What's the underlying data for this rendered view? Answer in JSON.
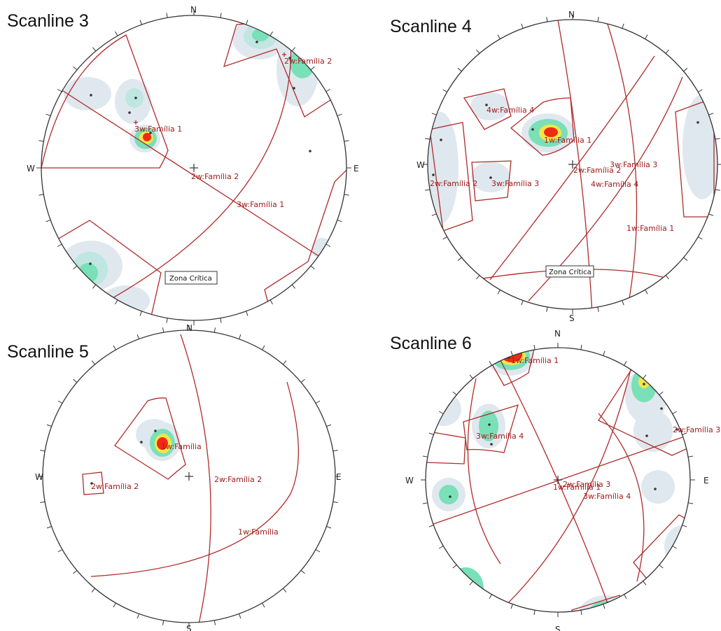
{
  "colors": {
    "feature": "#b02a2a",
    "outline": "#333333",
    "contour_low": "#dfe8ee",
    "contour_mid": "#79e0b8",
    "contour_high": "#f4e64a",
    "contour_peak": "#ee2b14"
  },
  "directions": {
    "n": "N",
    "s": "S",
    "e": "E",
    "w": "W"
  },
  "panels": [
    {
      "id": "scanline-3",
      "title": "Scanline 3",
      "labels": [
        "3w:Família 1",
        "2w:Família 2",
        "3w:Família 1",
        "2w:Família 2"
      ],
      "zone_label": "Zona Crítica"
    },
    {
      "id": "scanline-4",
      "title": "Scanline 4",
      "labels": [
        "4w:Família 4",
        "1w:Família 1",
        "2w:Família 2",
        "3w:Família 3",
        "2w:Família 2",
        "3w:Família 3",
        "4w:Família 4",
        "1w:Família 1"
      ],
      "zone_label": "Zona Crítica"
    },
    {
      "id": "scanline-5",
      "title": "Scanline 5",
      "labels": [
        "1w:Família",
        "2w:Família 2",
        "2w:Família 2",
        "1w:Família"
      ]
    },
    {
      "id": "scanline-6",
      "title": "Scanline 6",
      "labels": [
        "1w:Família 1",
        "3w:Família 4",
        "2w:Família 3",
        "1w:Família 1",
        "3w:Família 4",
        "2w:Família 3"
      ]
    }
  ]
}
